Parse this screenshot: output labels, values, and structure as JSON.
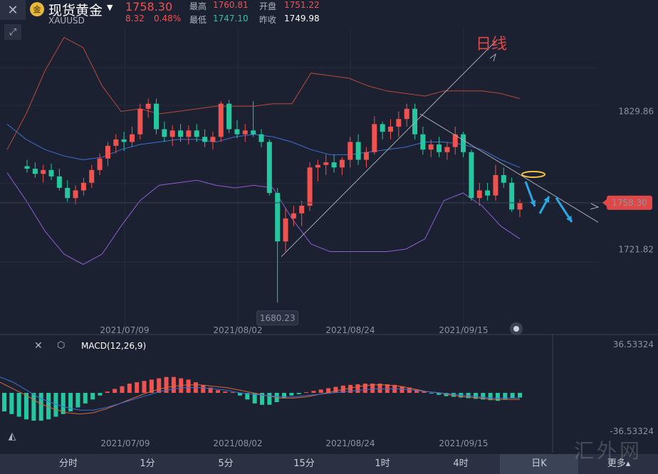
{
  "header": {
    "symbol_name": "现货黄金",
    "symbol_code": "XAUUSD",
    "coin_glyph": "金",
    "last_price": "1758.30",
    "change": "8.32",
    "change_pct": "0.48%",
    "high_label": "最高",
    "high_value": "1760.81",
    "open_label": "开盘",
    "open_value": "1751.22",
    "low_label": "最低",
    "low_value": "1747.10",
    "prev_close_label": "昨收",
    "prev_close_value": "1749.98"
  },
  "annotation_text": "日线",
  "macd_label": "MACD(12,26,9)",
  "tabs": [
    "分时",
    "1分",
    "5分",
    "15分",
    "1时",
    "4时",
    "日K",
    "更多▴"
  ],
  "active_tab": "日K",
  "watermark": "汇外网",
  "colors": {
    "up": "#ef5350",
    "down": "#26c6a0",
    "bg": "#1b2130",
    "mid_band": "#3f6fd1",
    "lower_band": "#8e5cd6",
    "upper_band": "#b8493c",
    "marker": "#f5c542",
    "arrow": "#2aa8e6"
  },
  "chart_data": [
    {
      "type": "candlestick",
      "title": "现货黄金 XAUUSD",
      "price_labels": [
        "1829.86",
        "1758.30",
        "1721.82"
      ],
      "current_price": 1758.3,
      "min_marker": {
        "value": 1680.23,
        "label": "1680.23"
      },
      "x_tick_labels": [
        "2021/07/09",
        "2021/08/02",
        "2021/08/24",
        "2021/09/15"
      ],
      "ylim": [
        1655,
        1895
      ],
      "candles": [
        [
          1787,
          1792,
          1782,
          1785
        ],
        [
          1785,
          1790,
          1778,
          1781
        ],
        [
          1781,
          1788,
          1774,
          1784
        ],
        [
          1784,
          1789,
          1776,
          1779
        ],
        [
          1779,
          1785,
          1768,
          1770
        ],
        [
          1770,
          1776,
          1759,
          1762
        ],
        [
          1762,
          1772,
          1757,
          1768
        ],
        [
          1768,
          1778,
          1764,
          1774
        ],
        [
          1774,
          1788,
          1770,
          1784
        ],
        [
          1784,
          1797,
          1780,
          1793
        ],
        [
          1793,
          1806,
          1787,
          1803
        ],
        [
          1803,
          1812,
          1797,
          1808
        ],
        [
          1808,
          1814,
          1799,
          1806
        ],
        [
          1806,
          1818,
          1802,
          1812
        ],
        [
          1812,
          1836,
          1808,
          1832
        ],
        [
          1832,
          1840,
          1825,
          1836
        ],
        [
          1836,
          1840,
          1812,
          1816
        ],
        [
          1816,
          1822,
          1806,
          1810
        ],
        [
          1810,
          1819,
          1803,
          1815
        ],
        [
          1815,
          1820,
          1806,
          1810
        ],
        [
          1810,
          1819,
          1804,
          1815
        ],
        [
          1815,
          1820,
          1806,
          1810
        ],
        [
          1810,
          1816,
          1802,
          1806
        ],
        [
          1806,
          1814,
          1800,
          1810
        ],
        [
          1810,
          1838,
          1806,
          1836
        ],
        [
          1836,
          1839,
          1813,
          1816
        ],
        [
          1816,
          1823,
          1809,
          1812
        ],
        [
          1812,
          1820,
          1806,
          1815
        ],
        [
          1815,
          1838,
          1810,
          1812
        ],
        [
          1812,
          1816,
          1802,
          1806
        ],
        [
          1806,
          1808,
          1764,
          1766
        ],
        [
          1766,
          1770,
          1680,
          1728
        ],
        [
          1728,
          1754,
          1720,
          1746
        ],
        [
          1746,
          1756,
          1740,
          1750
        ],
        [
          1750,
          1760,
          1740,
          1756
        ],
        [
          1756,
          1790,
          1752,
          1786
        ],
        [
          1786,
          1792,
          1775,
          1788
        ],
        [
          1788,
          1796,
          1780,
          1790
        ],
        [
          1790,
          1796,
          1782,
          1786
        ],
        [
          1786,
          1794,
          1780,
          1792
        ],
        [
          1792,
          1810,
          1786,
          1806
        ],
        [
          1806,
          1812,
          1788,
          1792
        ],
        [
          1792,
          1802,
          1786,
          1798
        ],
        [
          1798,
          1826,
          1796,
          1820
        ],
        [
          1820,
          1822,
          1808,
          1814
        ],
        [
          1814,
          1824,
          1808,
          1818
        ],
        [
          1818,
          1830,
          1810,
          1824
        ],
        [
          1824,
          1836,
          1818,
          1832
        ],
        [
          1832,
          1836,
          1808,
          1812
        ],
        [
          1812,
          1818,
          1796,
          1800
        ],
        [
          1800,
          1808,
          1794,
          1804
        ],
        [
          1804,
          1810,
          1794,
          1798
        ],
        [
          1798,
          1806,
          1792,
          1802
        ],
        [
          1802,
          1818,
          1796,
          1812
        ],
        [
          1812,
          1814,
          1794,
          1798
        ],
        [
          1798,
          1800,
          1760,
          1762
        ],
        [
          1762,
          1774,
          1756,
          1768
        ],
        [
          1768,
          1774,
          1760,
          1764
        ],
        [
          1764,
          1788,
          1760,
          1780
        ],
        [
          1780,
          1786,
          1770,
          1774
        ],
        [
          1774,
          1778,
          1751,
          1753
        ],
        [
          1753,
          1761,
          1747,
          1758
        ]
      ],
      "bollinger": {
        "upper": [
          1800,
          1828,
          1862,
          1888,
          1880,
          1850,
          1830,
          1832,
          1828,
          1830,
          1832,
          1834,
          1834,
          1834,
          1836,
          1836,
          1860,
          1858,
          1856,
          1850,
          1846,
          1844,
          1842,
          1846,
          1846,
          1846,
          1844,
          1840
        ],
        "middle": [
          1820,
          1808,
          1800,
          1795,
          1792,
          1794,
          1800,
          1804,
          1806,
          1808,
          1808,
          1806,
          1810,
          1812,
          1810,
          1806,
          1800,
          1796,
          1796,
          1798,
          1800,
          1802,
          1806,
          1806,
          1804,
          1800,
          1792,
          1786
        ],
        "lower": [
          1782,
          1760,
          1736,
          1718,
          1710,
          1718,
          1740,
          1760,
          1772,
          1774,
          1776,
          1772,
          1770,
          1772,
          1770,
          1746,
          1726,
          1720,
          1720,
          1720,
          1720,
          1722,
          1730,
          1760,
          1766,
          1756,
          1740,
          1730
        ]
      }
    },
    {
      "type": "bar",
      "title": "MACD(12,26,9)",
      "y_tick_labels": [
        "36.53324",
        "-36.53324"
      ],
      "ylim": [
        -36.53324,
        36.53324
      ],
      "x_tick_labels": [
        "2021/07/09",
        "2021/08/02",
        "2021/08/24",
        "2021/09/15"
      ],
      "histogram": [
        -14,
        -16,
        -18,
        -20,
        -21,
        -21,
        -20,
        -18,
        -16,
        -14,
        -11,
        -8,
        -5,
        -2,
        1,
        3,
        5,
        7,
        8,
        9,
        10,
        11,
        12,
        12,
        11,
        10,
        8,
        6,
        4,
        2,
        1,
        0.5,
        -2,
        -5,
        -8,
        -9,
        -9,
        -7,
        -4,
        -2,
        -1,
        0.5,
        1.5,
        2.5,
        3.5,
        4.5,
        5.5,
        6,
        6.5,
        7,
        7,
        7,
        6.5,
        6,
        5,
        4,
        2.5,
        1,
        -0.5,
        -1.5,
        -2.5,
        -3,
        -3.5,
        -4,
        -4.5,
        -5,
        -5.5,
        -6,
        -5,
        -4,
        -3.5
      ],
      "macd_line": [
        8,
        3,
        -2,
        -8,
        -12,
        -15,
        -16,
        -15,
        -12,
        -8,
        -4,
        0,
        3,
        5,
        6,
        6,
        5,
        4,
        2,
        0,
        -2,
        -4,
        -4,
        -3,
        -1,
        1,
        3,
        5,
        6,
        6,
        5,
        3,
        1,
        0,
        -2,
        -3,
        -4,
        -5,
        -5,
        -5
      ],
      "signal_line": [
        12,
        8,
        2,
        -4,
        -8,
        -11,
        -13,
        -13,
        -11,
        -8,
        -5,
        -2,
        1,
        3,
        4,
        4,
        3,
        2,
        0,
        -1,
        -2,
        -3,
        -3,
        -2,
        -1,
        0,
        1,
        2,
        3,
        3,
        3,
        2,
        1,
        0,
        -1,
        -2,
        -3,
        -4,
        -4,
        -4
      ]
    }
  ]
}
